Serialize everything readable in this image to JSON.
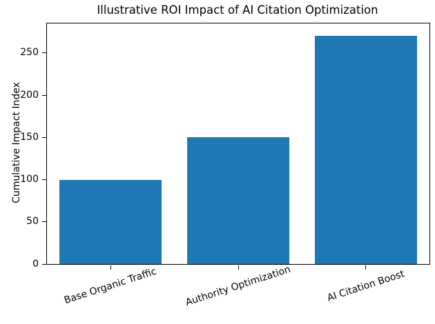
{
  "colors": {
    "bar": "#1f77b4",
    "axis": "#000000",
    "background": "#ffffff"
  },
  "chart_data": {
    "type": "bar",
    "title": "Illustrative ROI Impact of AI Citation Optimization",
    "xlabel": "",
    "ylabel": "Cumulative Impact Index",
    "categories": [
      "Base Organic Traffic",
      "Authority Optimization",
      "AI Citation Boost"
    ],
    "values": [
      100,
      150,
      270
    ],
    "yticks": [
      0,
      50,
      100,
      150,
      200,
      250
    ],
    "ylim": [
      0,
      285
    ],
    "bar_color": "#1f77b4",
    "bar_width_fraction": 0.8,
    "x_tick_rotation_deg": 18,
    "grid": false,
    "legend": "none"
  }
}
